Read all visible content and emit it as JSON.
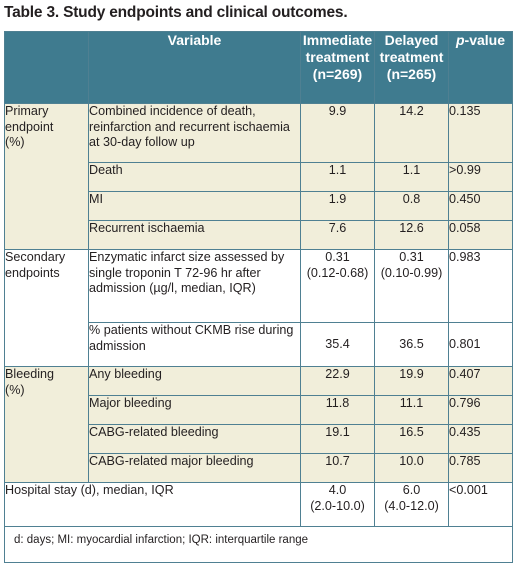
{
  "title": "Table 3. Study endpoints and clinical outcomes.",
  "header": {
    "variable": "Variable",
    "immediate": "Immediate treatment (n=269)",
    "delayed": "Delayed treatment (n=265)",
    "pvalue_italic": "p",
    "pvalue_rest": "-value"
  },
  "groups": {
    "primary": "Primary\nendpoint\n(%)",
    "secondary": "Secondary\nendpoints",
    "bleeding": "Bleeding\n(%)"
  },
  "rows": [
    {
      "variable": "Combined incidence of death, reinfarction and recurrent ischaemia at 30-day follow up",
      "immediate": "9.9",
      "delayed": "14.2",
      "p": "0.135"
    },
    {
      "variable": "Death",
      "immediate": "1.1",
      "delayed": "1.1",
      "p": ">0.99"
    },
    {
      "variable": "MI",
      "immediate": "1.9",
      "delayed": "0.8",
      "p": "0.450"
    },
    {
      "variable": "Recurrent ischaemia",
      "immediate": "7.6",
      "delayed": "12.6",
      "p": "0.058"
    },
    {
      "variable": "Enzymatic infarct size assessed by single troponin T 72-96 hr after admission (µg/l, median, IQR)",
      "immediate": "0.31\n(0.12-0.68)",
      "delayed": "0.31\n(0.10-0.99)",
      "p": "0.983"
    },
    {
      "variable": "% patients without CKMB rise during admission",
      "immediate": "35.4",
      "delayed": "36.5",
      "p": "0.801"
    },
    {
      "variable": "Any bleeding",
      "immediate": "22.9",
      "delayed": "19.9",
      "p": "0.407"
    },
    {
      "variable": "Major bleeding",
      "immediate": "11.8",
      "delayed": "11.1",
      "p": "0.796"
    },
    {
      "variable": "CABG-related bleeding",
      "immediate": "19.1",
      "delayed": "16.5",
      "p": "0.435"
    },
    {
      "variable": "CABG-related major bleeding",
      "immediate": "10.7",
      "delayed": "10.0",
      "p": "0.785"
    }
  ],
  "hospital": {
    "variable": "Hospital stay (d), median, IQR",
    "immediate": "4.0\n(2.0-10.0)",
    "delayed": "6.0\n(4.0-12.0)",
    "p": "<0.001"
  },
  "footnote": "d: days; MI: myocardial infarction; IQR: interquartile range"
}
